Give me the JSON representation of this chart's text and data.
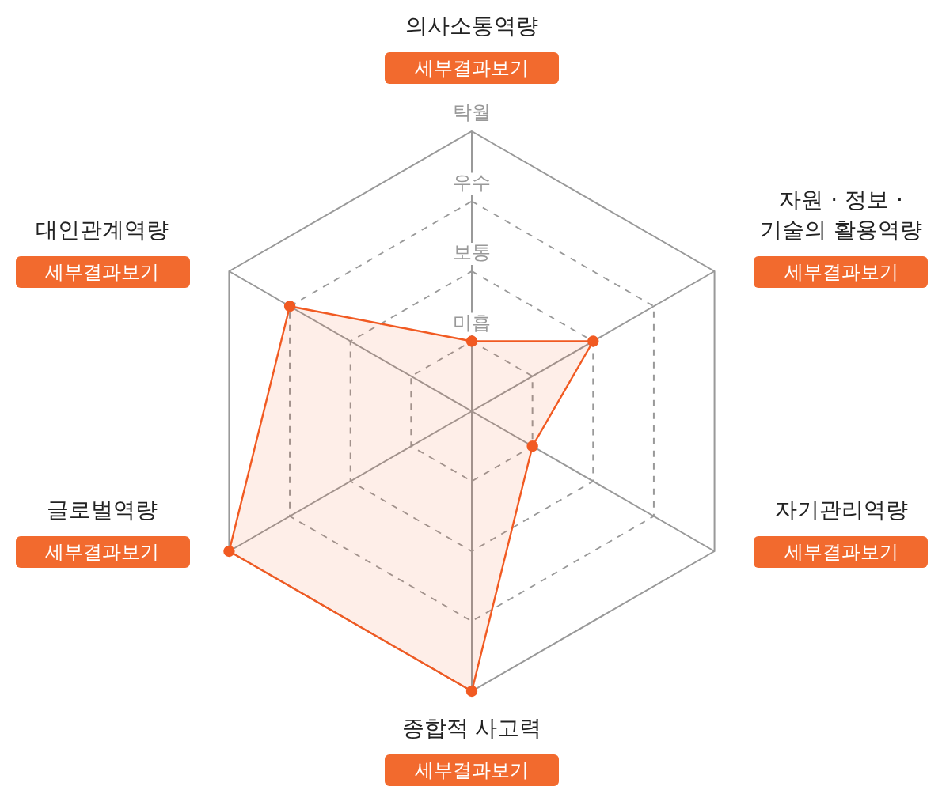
{
  "chart_data": {
    "type": "radar",
    "categories": [
      "의사소통역량",
      "자원 · 정보 ·\n기술의 활용역량",
      "자기관리역량",
      "종합적 사고력",
      "글로벌역량",
      "대인관계역량"
    ],
    "series": [
      {
        "color": "#f15a22",
        "values": [
          1,
          2,
          1,
          4,
          4,
          3
        ]
      }
    ],
    "ylim": [
      0,
      4
    ],
    "yticks": [
      {
        "value": 1,
        "label": "미흡"
      },
      {
        "value": 2,
        "label": "보통"
      },
      {
        "value": 3,
        "label": "우수"
      },
      {
        "value": 4,
        "label": "탁월"
      }
    ],
    "grid": true,
    "legend": false,
    "marker": "circle",
    "annotations": [
      "세부결과보기",
      "세부결과보기",
      "세부결과보기",
      "세부결과보기",
      "세부결과보기",
      "세부결과보기"
    ]
  }
}
